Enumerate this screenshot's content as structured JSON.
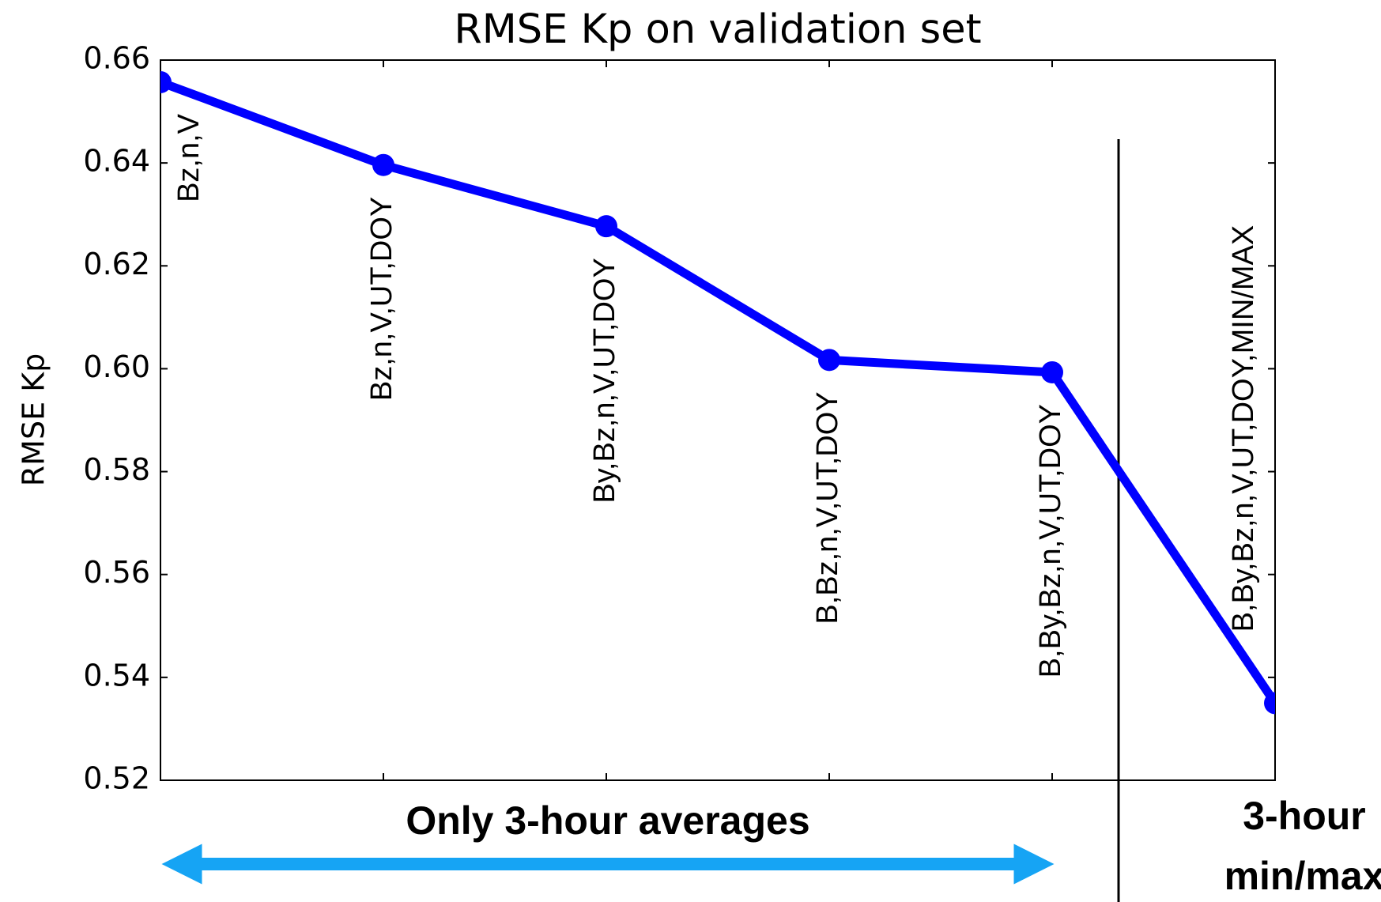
{
  "chart_data": {
    "type": "line",
    "title": "RMSE Kp on validation set",
    "y_label": "RMSE Kp",
    "categories": [
      "Bz,n,V",
      "Bz,n,V,UT,DOY",
      "By,Bz,n,V,UT,DOY",
      "B,Bz,n,V,UT,DOY",
      "B,By,Bz,n,V,UT,DOY",
      "B,By,Bz,n,V,UT,DOY,MIN/MAX"
    ],
    "series": [
      {
        "name": "RMSE Kp",
        "color": "#0000ff",
        "values": [
          0.6557,
          0.6396,
          0.6277,
          0.6017,
          0.5993,
          0.535
        ]
      }
    ],
    "ylim": [
      0.52,
      0.66
    ],
    "yticks": [
      0.52,
      0.54,
      0.56,
      0.58,
      {
        "value": 0.6,
        "label": "0.60"
      },
      0.62,
      0.64,
      0.66
    ],
    "annotations": {
      "left": "Only 3-hour averages",
      "right": [
        "3-hour",
        "min/max"
      ]
    }
  }
}
